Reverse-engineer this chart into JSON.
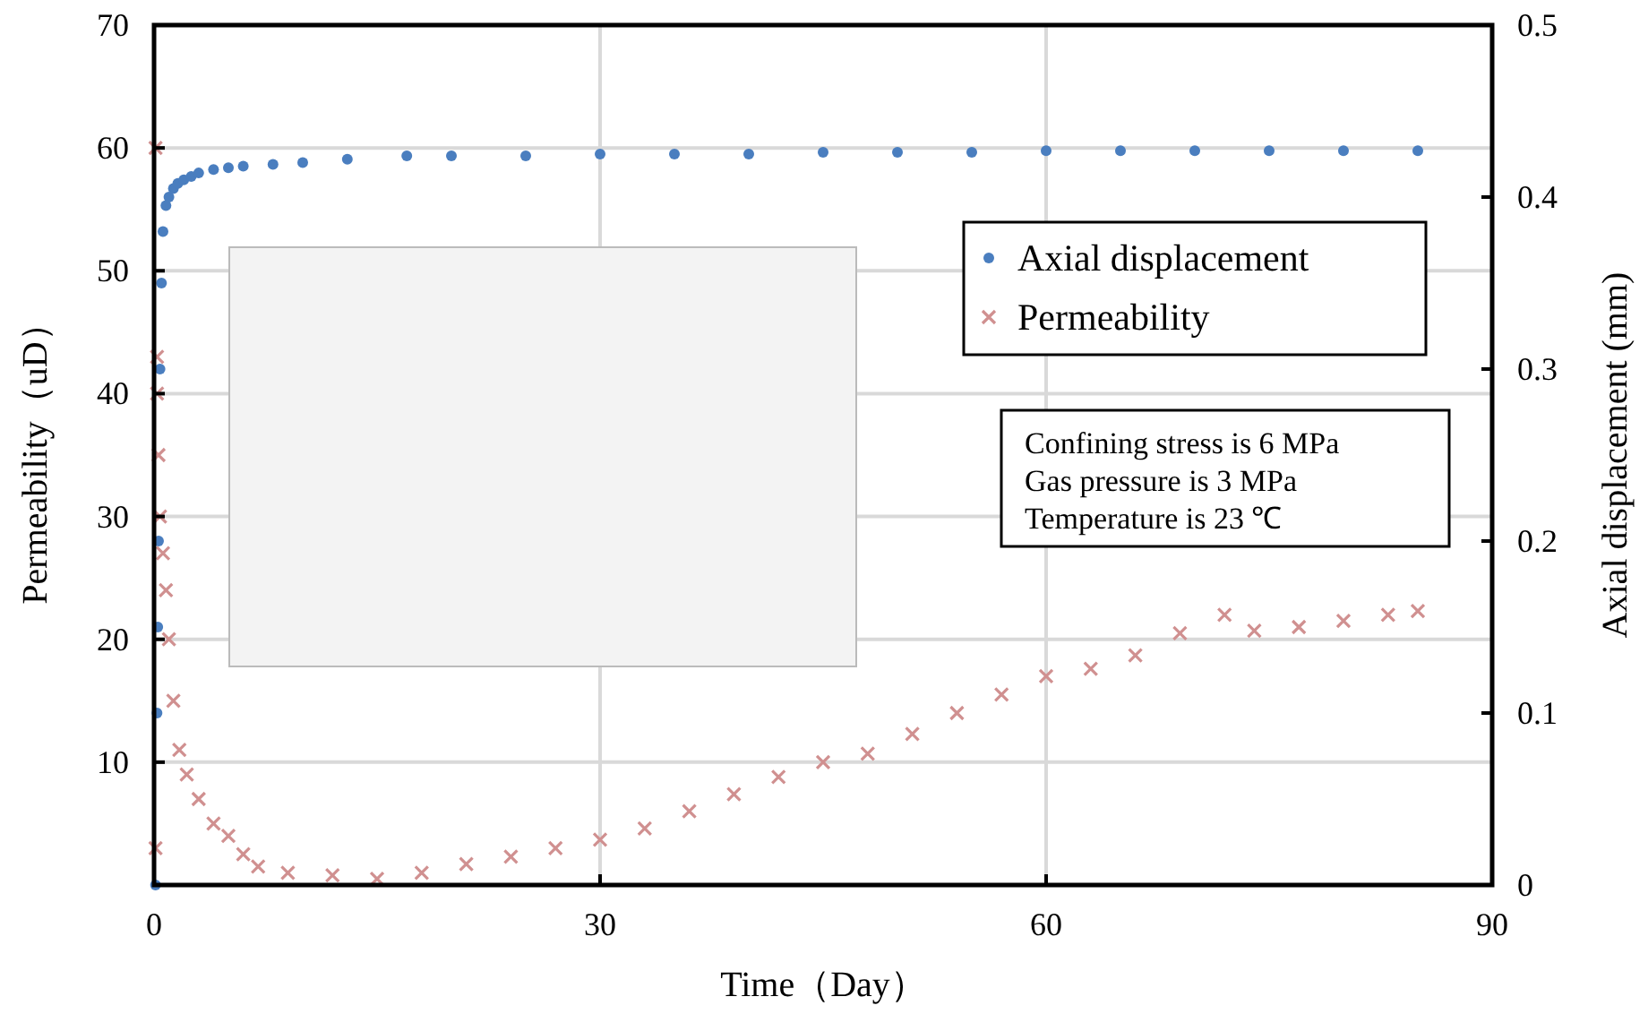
{
  "chart_data": {
    "type": "scatter",
    "xlabel": "Time（Day）",
    "ylabel": "Permeability（uD）",
    "y2label": "Axial displacement (mm)",
    "xlim": [
      0,
      90
    ],
    "xticks": [
      0,
      30,
      60,
      90
    ],
    "ylim": [
      0,
      70
    ],
    "yticks": [
      10,
      20,
      30,
      40,
      50,
      60,
      70
    ],
    "y2lim": [
      0,
      0.5
    ],
    "y2ticks": [
      0,
      0.1,
      0.2,
      0.3,
      0.4,
      0.5
    ],
    "grid": true,
    "legend": "top right",
    "annotations": [
      "Confining stress is 6 MPa",
      "Gas pressure is 3 MPa",
      "Temperature is 23 ℃"
    ],
    "series": [
      {
        "name": "Axial displacement",
        "color": "#4a7ebf",
        "axis": "y2",
        "marker": "circle",
        "x": [
          0.1,
          0.2,
          0.25,
          0.3,
          0.4,
          0.5,
          0.6,
          0.8,
          1,
          1.3,
          1.6,
          2,
          2.5,
          3,
          4,
          5,
          6,
          8,
          10,
          13,
          17,
          20,
          25,
          30,
          35,
          40,
          45,
          50,
          55,
          60,
          65,
          70,
          75,
          80,
          85
        ],
        "values": [
          0,
          0.1,
          0.15,
          0.2,
          0.3,
          0.35,
          0.38,
          0.395,
          0.4,
          0.405,
          0.408,
          0.41,
          0.412,
          0.414,
          0.416,
          0.417,
          0.418,
          0.419,
          0.42,
          0.422,
          0.424,
          0.424,
          0.424,
          0.425,
          0.425,
          0.425,
          0.426,
          0.426,
          0.426,
          0.427,
          0.427,
          0.427,
          0.427,
          0.427,
          0.427
        ]
      },
      {
        "name": "Permeability",
        "color": "#d09090",
        "marker": "cross",
        "x": [
          0.1,
          0.1,
          0.2,
          0.2,
          0.3,
          0.4,
          0.6,
          0.8,
          1.0,
          1.3,
          1.7,
          2.2,
          3,
          4,
          5,
          6,
          7,
          9,
          12,
          15,
          18,
          21,
          24,
          27,
          30,
          33,
          36,
          39,
          42,
          45,
          48,
          51,
          54,
          57,
          60,
          63,
          66,
          69,
          72,
          74,
          77,
          80,
          83,
          85
        ],
        "values": [
          60,
          3,
          43,
          40,
          35,
          30,
          27,
          24,
          20,
          15,
          11,
          9,
          7,
          5,
          4,
          2.5,
          1.5,
          1,
          0.8,
          0.5,
          1,
          1.7,
          2.3,
          3,
          3.7,
          4.6,
          6,
          7.4,
          8.8,
          10,
          10.7,
          12.3,
          14,
          15.5,
          17,
          17.6,
          18.7,
          20.5,
          22,
          20.7,
          21,
          21.5,
          22,
          22.3
        ]
      }
    ]
  }
}
